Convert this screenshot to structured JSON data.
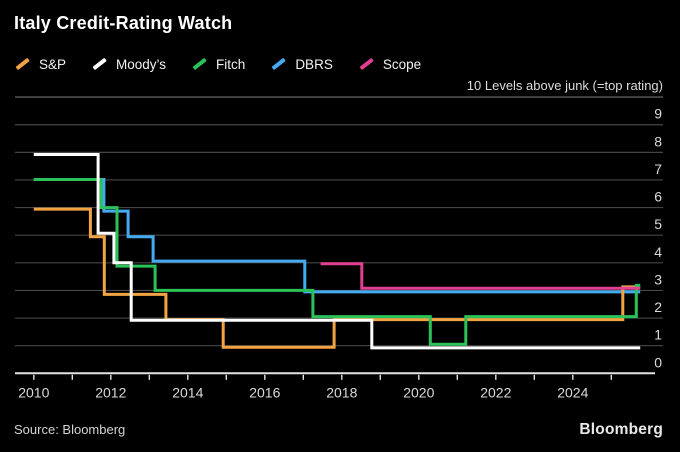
{
  "header": {
    "title": "Italy Credit-Rating Watch",
    "annotation": "10 Levels above junk (=top rating)"
  },
  "legend": {
    "items": [
      {
        "label": "S&P",
        "color": "#F2A444"
      },
      {
        "label": "Moody’s",
        "color": "#FFFFFF"
      },
      {
        "label": "Fitch",
        "color": "#2BC259"
      },
      {
        "label": "DBRS",
        "color": "#45ABF0"
      },
      {
        "label": "Scope",
        "color": "#E04092"
      }
    ]
  },
  "footer": {
    "source": "Source: Bloomberg",
    "logo": "Bloomberg"
  },
  "chart_data": {
    "type": "line",
    "subtype": "step",
    "title": "Italy Credit-Rating Watch",
    "ylabel": "Levels above junk (10 = top rating)",
    "x_range": [
      2010,
      2025.75
    ],
    "y_range": [
      0,
      10
    ],
    "y_ticks": [
      0,
      1,
      2,
      3,
      4,
      5,
      6,
      7,
      8,
      9
    ],
    "x_minor_ticks": [
      2010,
      2011,
      2012,
      2013,
      2014,
      2015,
      2016,
      2017,
      2018,
      2019,
      2020,
      2021,
      2022,
      2023,
      2024,
      2025
    ],
    "x_tick_labels": [
      "2010",
      "2012",
      "2014",
      "2016",
      "2018",
      "2020",
      "2022",
      "2024"
    ],
    "grid": "horizontal",
    "legend_position": "top-left",
    "colors": {
      "background": "#000000",
      "gridline": "#464646",
      "top_rule": "#5c5c5c",
      "axis": "#e2e2e2",
      "tick_label": "#dadada"
    },
    "series": [
      {
        "name": "S&P",
        "color": "#F2A444",
        "z": 2,
        "dy": 1.5,
        "steps": [
          [
            2010,
            6
          ],
          [
            2011.47,
            5
          ],
          [
            2011.83,
            3,
            4
          ],
          [
            2013.43,
            2
          ],
          [
            2014.92,
            1
          ],
          [
            2017.8,
            2
          ],
          [
            2025.3,
            3,
            -3.5
          ]
        ]
      },
      {
        "name": "Moody's",
        "color": "#FFFFFF",
        "z": 4,
        "dy": 2.2,
        "steps": [
          [
            2010,
            8
          ],
          [
            2011.67,
            5,
            -2
          ],
          [
            2012.08,
            4,
            0
          ],
          [
            2012.53,
            2
          ],
          [
            2018.78,
            1
          ]
        ]
      },
      {
        "name": "Fitch",
        "color": "#2BC259",
        "z": 3,
        "dy": -1.5,
        "steps": [
          [
            2010,
            7,
            -0.5
          ],
          [
            2011.75,
            6,
            0
          ],
          [
            2012.16,
            4,
            3.3
          ],
          [
            2013.15,
            3,
            0
          ],
          [
            2017.25,
            2
          ],
          [
            2020.3,
            1
          ],
          [
            2021.22,
            2
          ],
          [
            2025.65,
            3,
            -5
          ]
        ]
      },
      {
        "name": "DBRS",
        "color": "#45ABF0",
        "z": 1,
        "dy": 1.5,
        "steps": [
          [
            2010,
            7,
            -0.5
          ],
          [
            2011.82,
            6,
            3.5
          ],
          [
            2012.45,
            5
          ],
          [
            2013.1,
            4,
            -1.7
          ],
          [
            2017.04,
            3
          ]
        ]
      },
      {
        "name": "Scope",
        "color": "#E04092",
        "z": 5,
        "dy": -2.1,
        "steps": [
          [
            2017.45,
            4,
            1
          ],
          [
            2018.52,
            3,
            -2.1
          ]
        ]
      }
    ]
  }
}
